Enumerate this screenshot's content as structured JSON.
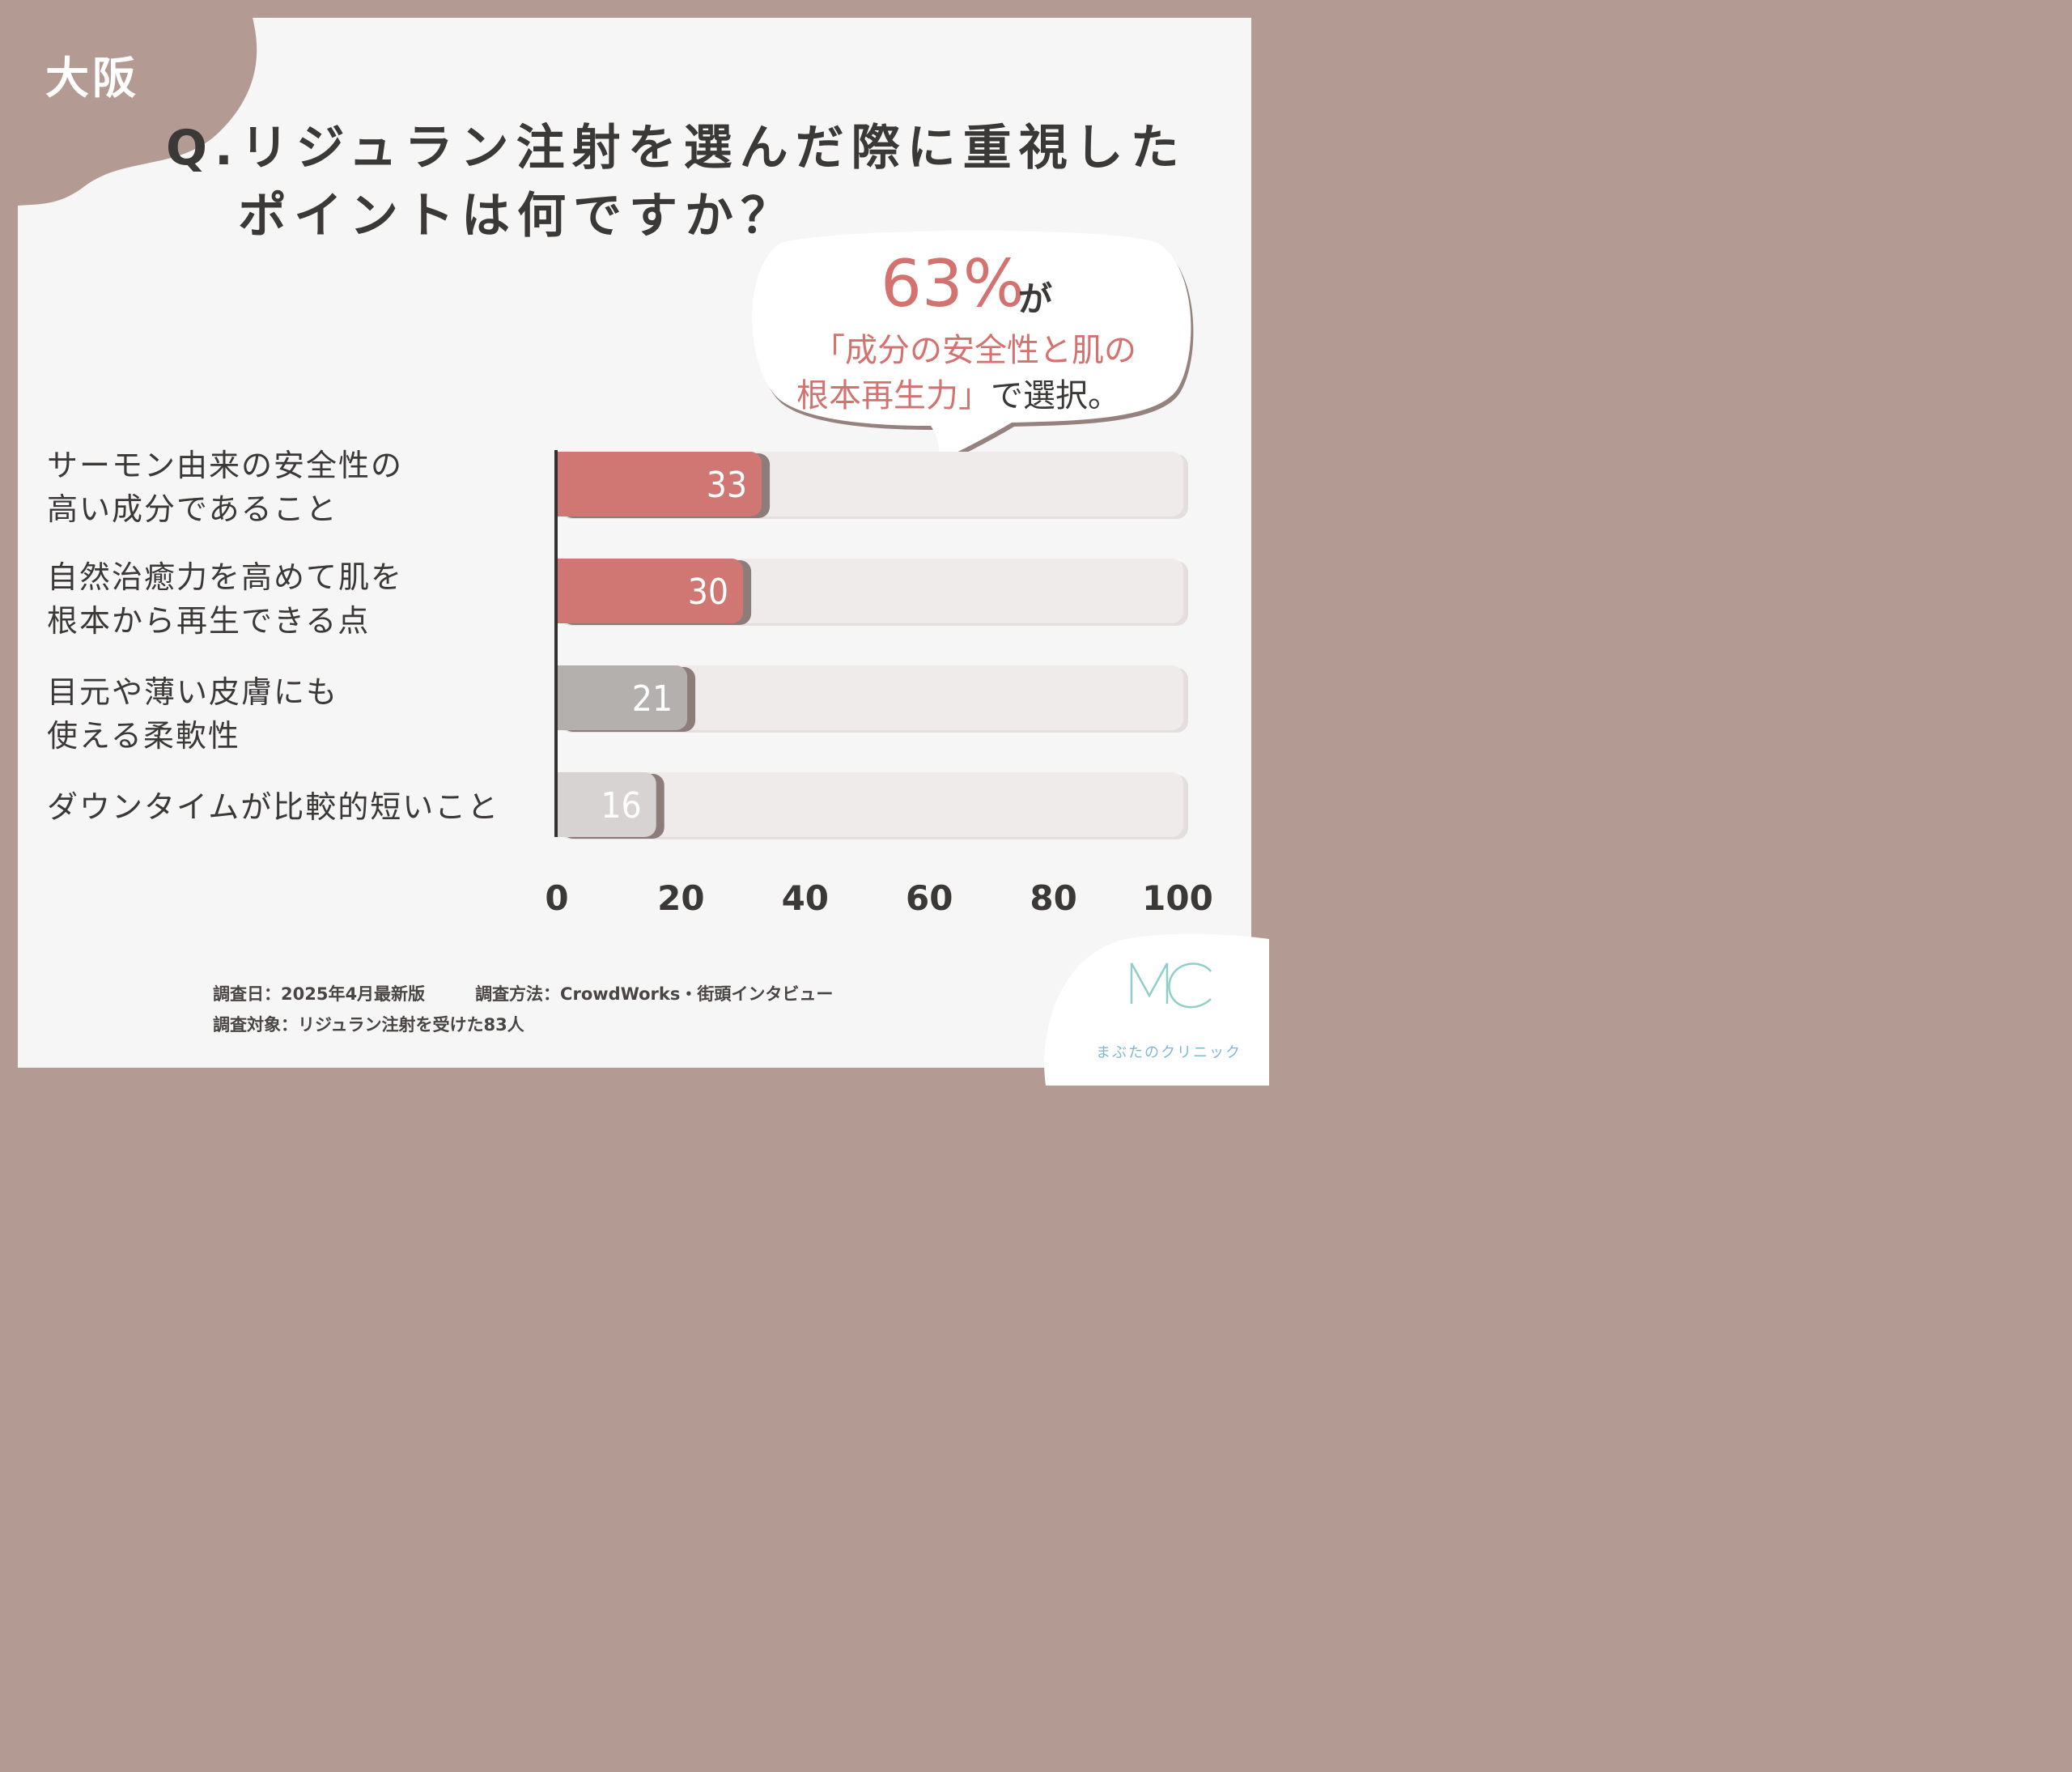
{
  "region_label": "大阪",
  "question": {
    "line1": "Q.リジュラン注射を選んだ際に重視した",
    "line2": "ポイントは何ですか？"
  },
  "callout": {
    "percent": "63%",
    "ga": "が",
    "highlight_line1": "「成分の安全性と肌の",
    "highlight_line2": "根本再生力」",
    "tail": "で選択。"
  },
  "chart_data": {
    "type": "bar",
    "orientation": "horizontal",
    "categories": [
      [
        "サーモン由来の安全性の",
        "高い成分であること"
      ],
      [
        "自然治癒力を高めて肌を",
        "根本から再生できる点"
      ],
      [
        "目元や薄い皮膚にも",
        "使える柔軟性"
      ],
      [
        "ダウンタイムが比較的短いこと"
      ]
    ],
    "values": [
      33,
      30,
      21,
      16
    ],
    "data_labels": [
      "33",
      "30",
      "21",
      "16"
    ],
    "xlim": [
      0,
      100
    ],
    "x_ticks": [
      "0",
      "20",
      "40",
      "60",
      "80",
      "100"
    ],
    "colors": [
      "#d17773",
      "#d17773",
      "#b4b0ae",
      "#d6d3d2"
    ],
    "track_color": "#efebea",
    "grid": false
  },
  "footer": {
    "survey_date": "調査日：2025年4月最新版",
    "survey_method": "調査方法：CrowdWorks・街頭インタビュー",
    "survey_target": "調査対象：リジュラン注射を受けた83人"
  },
  "logo": {
    "monogram": "MC",
    "name": "まぶたのクリニック",
    "color": "#8fcfc8"
  }
}
